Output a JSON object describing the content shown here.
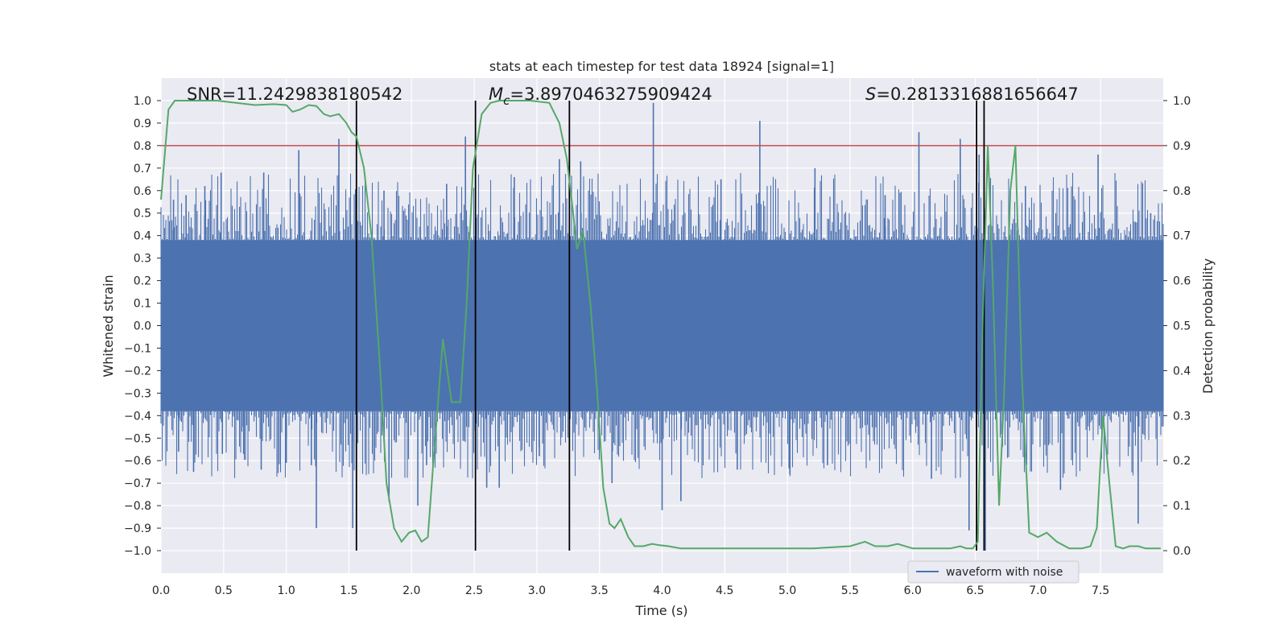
{
  "chart_data": {
    "type": "line",
    "title": "stats at each timestep for test data 18924 [signal=1]",
    "xlabel": "Time (s)",
    "ylabel": "Whitened strain",
    "ylabel_right": "Detection probability",
    "xlim": [
      0.0,
      8.0
    ],
    "ylim_left": [
      -1.1,
      1.1
    ],
    "ylim_right": [
      -0.05,
      1.05
    ],
    "x_ticks": [
      0.0,
      0.5,
      1.0,
      1.5,
      2.0,
      2.5,
      3.0,
      3.5,
      4.0,
      4.5,
      5.0,
      5.5,
      6.0,
      6.5,
      7.0,
      7.5
    ],
    "x_tick_labels": [
      "0.0",
      "0.5",
      "1.0",
      "1.5",
      "2.0",
      "2.5",
      "3.0",
      "3.5",
      "4.0",
      "4.5",
      "5.0",
      "5.5",
      "6.0",
      "6.5",
      "7.0",
      "7.5"
    ],
    "y_left_ticks": [
      1.0,
      0.9,
      0.8,
      0.7,
      0.6,
      0.5,
      0.4,
      0.3,
      0.2,
      0.1,
      0.0,
      -0.1,
      -0.2,
      -0.3,
      -0.4,
      -0.5,
      -0.6,
      -0.7,
      -0.8,
      -0.9,
      -1.0
    ],
    "y_left_tick_labels": [
      "1.0",
      "0.9",
      "0.8",
      "0.7",
      "0.6",
      "0.5",
      "0.4",
      "0.3",
      "0.2",
      "0.1",
      "0.0",
      "−0.1",
      "−0.2",
      "−0.3",
      "−0.4",
      "−0.5",
      "−0.6",
      "−0.7",
      "−0.8",
      "−0.9",
      "−1.0"
    ],
    "y_right_ticks": [
      1.0,
      0.9,
      0.8,
      0.7,
      0.6,
      0.5,
      0.4,
      0.3,
      0.2,
      0.1,
      0.0
    ],
    "y_right_tick_labels": [
      "1.0",
      "0.9",
      "0.8",
      "0.7",
      "0.6",
      "0.5",
      "0.4",
      "0.3",
      "0.2",
      "0.1",
      "0.0"
    ],
    "annotations": {
      "snr": "SNR=11.2429838180542",
      "mc_symbol": "M",
      "mc_sub": "c",
      "mc_value": "=3.8970463275909424",
      "s_symbol": "S",
      "s_value": "=0.2813316881656647"
    },
    "threshold": {
      "value": 0.8,
      "axis": "left",
      "color": "#c44e52"
    },
    "vertical_lines": [
      1.56,
      2.51,
      3.26,
      6.51,
      6.57
    ],
    "vertical_line_range": [
      -1.0,
      1.0
    ],
    "waveform": {
      "name": "waveform with noise",
      "color": "#4c72b0",
      "envelope_core": 0.38,
      "spikes": [
        {
          "x": 0.1,
          "v": 0.56
        },
        {
          "x": 0.14,
          "v": -0.56
        },
        {
          "x": 0.2,
          "v": 0.58
        },
        {
          "x": 0.26,
          "v": -0.65
        },
        {
          "x": 0.35,
          "v": 0.62
        },
        {
          "x": 0.48,
          "v": 0.68
        },
        {
          "x": 0.49,
          "v": -0.57
        },
        {
          "x": 0.66,
          "v": -0.57
        },
        {
          "x": 0.82,
          "v": 0.68
        },
        {
          "x": 0.8,
          "v": -0.64
        },
        {
          "x": 1.0,
          "v": -0.61
        },
        {
          "x": 1.1,
          "v": 0.78
        },
        {
          "x": 1.2,
          "v": -0.62
        },
        {
          "x": 1.24,
          "v": -0.9
        },
        {
          "x": 1.42,
          "v": 0.83
        },
        {
          "x": 1.53,
          "v": -0.9
        },
        {
          "x": 1.78,
          "v": 0.6
        },
        {
          "x": 1.82,
          "v": -0.78
        },
        {
          "x": 2.05,
          "v": -0.8
        },
        {
          "x": 2.12,
          "v": -0.62
        },
        {
          "x": 2.28,
          "v": 0.63
        },
        {
          "x": 2.43,
          "v": 0.84
        },
        {
          "x": 2.6,
          "v": -0.72
        },
        {
          "x": 2.7,
          "v": -0.72
        },
        {
          "x": 2.82,
          "v": 0.66
        },
        {
          "x": 3.02,
          "v": -0.58
        },
        {
          "x": 3.18,
          "v": 0.74
        },
        {
          "x": 3.35,
          "v": 0.73
        },
        {
          "x": 3.6,
          "v": -0.7
        },
        {
          "x": 3.93,
          "v": 0.99
        },
        {
          "x": 4.0,
          "v": -0.82
        },
        {
          "x": 4.15,
          "v": -0.78
        },
        {
          "x": 4.47,
          "v": 0.65
        },
        {
          "x": 4.6,
          "v": -0.64
        },
        {
          "x": 4.78,
          "v": 0.91
        },
        {
          "x": 5.02,
          "v": -0.66
        },
        {
          "x": 5.22,
          "v": 0.7
        },
        {
          "x": 5.32,
          "v": -0.62
        },
        {
          "x": 5.78,
          "v": 0.58
        },
        {
          "x": 6.05,
          "v": 0.86
        },
        {
          "x": 6.15,
          "v": -0.68
        },
        {
          "x": 6.38,
          "v": 0.83
        },
        {
          "x": 6.45,
          "v": -0.91
        },
        {
          "x": 6.53,
          "v": 0.76
        },
        {
          "x": 6.58,
          "v": -1.0
        },
        {
          "x": 6.9,
          "v": 0.62
        },
        {
          "x": 7.18,
          "v": -0.73
        },
        {
          "x": 7.48,
          "v": 0.76
        },
        {
          "x": 7.8,
          "v": -0.88
        },
        {
          "x": 7.9,
          "v": 0.5
        }
      ]
    },
    "probability": {
      "color": "#55a868",
      "x": [
        0.0,
        0.06,
        0.11,
        0.18,
        0.3,
        0.45,
        0.6,
        0.75,
        0.9,
        1.0,
        1.05,
        1.11,
        1.18,
        1.24,
        1.3,
        1.35,
        1.42,
        1.48,
        1.52,
        1.56,
        1.62,
        1.68,
        1.75,
        1.8,
        1.86,
        1.92,
        1.98,
        2.03,
        2.08,
        2.13,
        2.18,
        2.25,
        2.32,
        2.39,
        2.44,
        2.49,
        2.56,
        2.63,
        2.7,
        2.8,
        2.95,
        3.1,
        3.18,
        3.24,
        3.29,
        3.32,
        3.37,
        3.43,
        3.48,
        3.53,
        3.58,
        3.62,
        3.67,
        3.73,
        3.78,
        3.85,
        3.92,
        3.98,
        4.05,
        4.15,
        4.3,
        4.5,
        4.8,
        5.2,
        5.5,
        5.62,
        5.7,
        5.8,
        5.88,
        6.0,
        6.2,
        6.3,
        6.38,
        6.43,
        6.48,
        6.52,
        6.56,
        6.6,
        6.64,
        6.69,
        6.73,
        6.78,
        6.82,
        6.87,
        6.93,
        7.0,
        7.07,
        7.15,
        7.25,
        7.35,
        7.42,
        7.47,
        7.52,
        7.57,
        7.62,
        7.68,
        7.73,
        7.8,
        7.86,
        7.93,
        7.98
      ],
      "y": [
        0.78,
        0.98,
        1.0,
        1.0,
        1.0,
        1.0,
        0.995,
        0.99,
        0.992,
        0.99,
        0.975,
        0.98,
        0.99,
        0.988,
        0.97,
        0.965,
        0.97,
        0.95,
        0.93,
        0.92,
        0.85,
        0.7,
        0.4,
        0.15,
        0.05,
        0.02,
        0.04,
        0.045,
        0.02,
        0.03,
        0.22,
        0.47,
        0.33,
        0.33,
        0.55,
        0.85,
        0.97,
        0.995,
        1.0,
        1.0,
        1.0,
        0.995,
        0.95,
        0.87,
        0.75,
        0.67,
        0.71,
        0.54,
        0.36,
        0.14,
        0.06,
        0.05,
        0.07,
        0.03,
        0.01,
        0.01,
        0.015,
        0.012,
        0.01,
        0.005,
        0.005,
        0.005,
        0.005,
        0.005,
        0.01,
        0.02,
        0.01,
        0.01,
        0.015,
        0.005,
        0.005,
        0.005,
        0.01,
        0.005,
        0.005,
        0.02,
        0.52,
        0.9,
        0.6,
        0.1,
        0.35,
        0.8,
        0.9,
        0.4,
        0.04,
        0.03,
        0.04,
        0.02,
        0.005,
        0.005,
        0.01,
        0.05,
        0.3,
        0.15,
        0.01,
        0.005,
        0.01,
        0.01,
        0.005,
        0.005,
        0.005
      ]
    },
    "legend": {
      "label": "waveform with noise",
      "placement": "lower-right"
    }
  }
}
